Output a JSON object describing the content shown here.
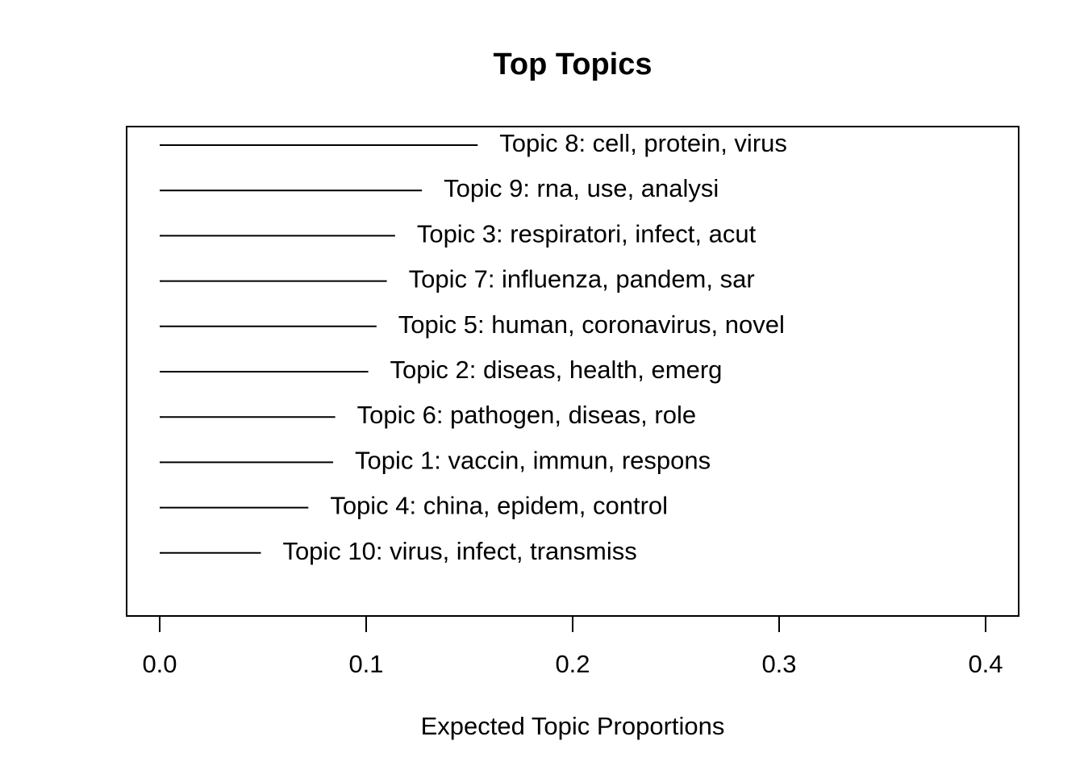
{
  "chart_data": {
    "type": "bar",
    "orientation": "horizontal",
    "title": "Top Topics",
    "xlabel": "Expected Topic Proportions",
    "ylabel": "",
    "xlim": [
      0,
      0.4
    ],
    "x_ticks": [
      "0.0",
      "0.1",
      "0.2",
      "0.3",
      "0.4"
    ],
    "x_tick_values": [
      0.0,
      0.1,
      0.2,
      0.3,
      0.4
    ],
    "grid": false,
    "categories": [
      "Topic 8: cell, protein, virus",
      "Topic 9: rna, use, analysi",
      "Topic 3: respiratori, infect, acut",
      "Topic 7: influenza, pandem, sar",
      "Topic 5: human, coronavirus, novel",
      "Topic 2: diseas, health, emerg",
      "Topic 6: pathogen, diseas, role",
      "Topic 1: vaccin, immun, respons",
      "Topic 4: china, epidem, control",
      "Topic 10: virus, infect, transmiss"
    ],
    "values": [
      0.154,
      0.127,
      0.114,
      0.11,
      0.105,
      0.101,
      0.085,
      0.084,
      0.072,
      0.049
    ],
    "bar_color": "#000000"
  }
}
